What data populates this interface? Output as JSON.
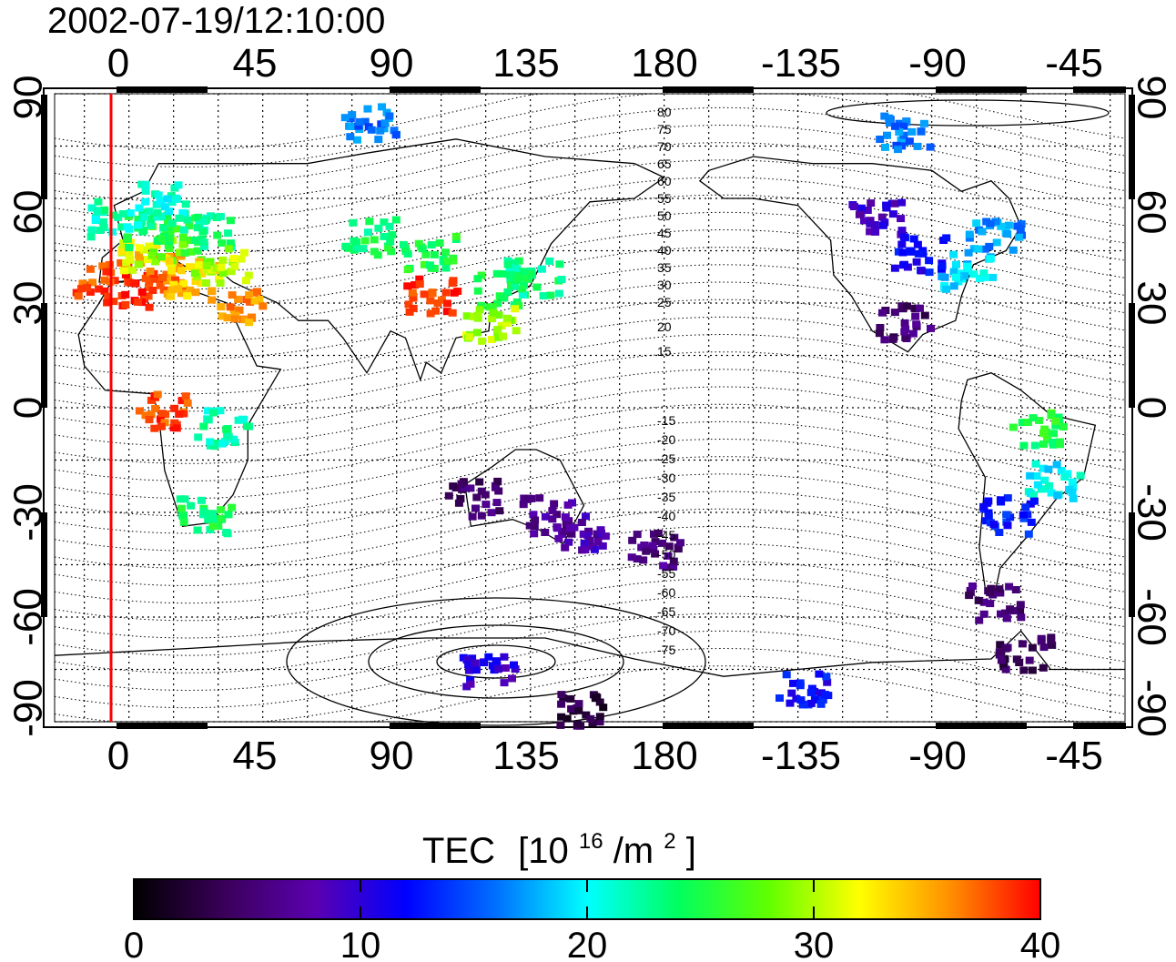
{
  "timestamp": "2002-07-19/12:10:00",
  "map": {
    "top_ticks": [
      "0",
      "45",
      "90",
      "135",
      "180",
      "-135",
      "-90",
      "-45"
    ],
    "bottom_ticks": [
      "0",
      "45",
      "90",
      "135",
      "180",
      "-135",
      "-90",
      "-45"
    ],
    "left_ticks": [
      "90",
      "60",
      "30",
      "0",
      "-30",
      "-60",
      "-90"
    ],
    "right_ticks": [
      "90",
      "60",
      "30",
      "0",
      "-30",
      "-60",
      "-90"
    ],
    "lon_range": [
      -25,
      335
    ],
    "lat_range": [
      -90,
      90
    ],
    "grid": true,
    "magnetic_latitude_labels_north": [
      "80",
      "75",
      "70",
      "65",
      "60",
      "55",
      "50",
      "45",
      "40",
      "35",
      "30",
      "25",
      "20",
      "15"
    ],
    "magnetic_latitude_labels_south": [
      "-15",
      "-20",
      "-25",
      "-30",
      "-35",
      "-40",
      "-45",
      "-50",
      "-55",
      "-60",
      "-65",
      "-70",
      "-75"
    ],
    "sun_meridian_color": "#ff0000"
  },
  "colorbar": {
    "title": "TEC",
    "unit_base": "[10",
    "unit_exp": "16",
    "unit_mid": "/m",
    "unit_exp2": "2",
    "unit_end": "]",
    "tick_labels": [
      "0",
      "10",
      "20",
      "30",
      "40"
    ],
    "range": [
      0,
      40
    ],
    "colors": [
      "#000000",
      "#3a005a",
      "#5b00b0",
      "#0000ff",
      "#0070ff",
      "#00ffff",
      "#00ff60",
      "#60ff00",
      "#ffff00",
      "#ff9000",
      "#ff0000"
    ]
  },
  "tec_patches": [
    {
      "lon": -10,
      "lat": 38,
      "tec": 38
    },
    {
      "lon": 0,
      "lat": 35,
      "tec": 39
    },
    {
      "lon": 10,
      "lat": 40,
      "tec": 37
    },
    {
      "lon": 5,
      "lat": 45,
      "tec": 31
    },
    {
      "lon": 15,
      "lat": 48,
      "tec": 27
    },
    {
      "lon": 5,
      "lat": 52,
      "tec": 24
    },
    {
      "lon": -5,
      "lat": 55,
      "tec": 22
    },
    {
      "lon": 25,
      "lat": 52,
      "tec": 23
    },
    {
      "lon": 10,
      "lat": 60,
      "tec": 21
    },
    {
      "lon": 20,
      "lat": 38,
      "tec": 34
    },
    {
      "lon": 30,
      "lat": 42,
      "tec": 30
    },
    {
      "lon": 35,
      "lat": 30,
      "tec": 36
    },
    {
      "lon": 80,
      "lat": 50,
      "tec": 24
    },
    {
      "lon": 100,
      "lat": 45,
      "tec": 25
    },
    {
      "lon": 125,
      "lat": 35,
      "tec": 24
    },
    {
      "lon": 135,
      "lat": 38,
      "tec": 23
    },
    {
      "lon": 120,
      "lat": 25,
      "tec": 30
    },
    {
      "lon": 100,
      "lat": 33,
      "tec": 39
    },
    {
      "lon": 10,
      "lat": 0,
      "tec": 38
    },
    {
      "lon": 30,
      "lat": -5,
      "tec": 22
    },
    {
      "lon": 25,
      "lat": -30,
      "tec": 24
    },
    {
      "lon": 115,
      "lat": -25,
      "tec": 5
    },
    {
      "lon": 140,
      "lat": -30,
      "tec": 7
    },
    {
      "lon": 150,
      "lat": -35,
      "tec": 8
    },
    {
      "lon": 175,
      "lat": -40,
      "tec": 6
    },
    {
      "lon": 250,
      "lat": 55,
      "tec": 9
    },
    {
      "lon": 265,
      "lat": 45,
      "tec": 12
    },
    {
      "lon": 280,
      "lat": 40,
      "tec": 19
    },
    {
      "lon": 290,
      "lat": 50,
      "tec": 17
    },
    {
      "lon": 260,
      "lat": 25,
      "tec": 5
    },
    {
      "lon": 305,
      "lat": -5,
      "tec": 25
    },
    {
      "lon": 310,
      "lat": -20,
      "tec": 20
    },
    {
      "lon": 295,
      "lat": -30,
      "tec": 13
    },
    {
      "lon": 290,
      "lat": -55,
      "tec": 5
    },
    {
      "lon": 300,
      "lat": -70,
      "tec": 4
    },
    {
      "lon": 120,
      "lat": -75,
      "tec": 10
    },
    {
      "lon": 150,
      "lat": -85,
      "tec": 3
    },
    {
      "lon": 80,
      "lat": 83,
      "tec": 16
    },
    {
      "lon": 260,
      "lat": 80,
      "tec": 16
    },
    {
      "lon": 225,
      "lat": -80,
      "tec": 12
    }
  ]
}
